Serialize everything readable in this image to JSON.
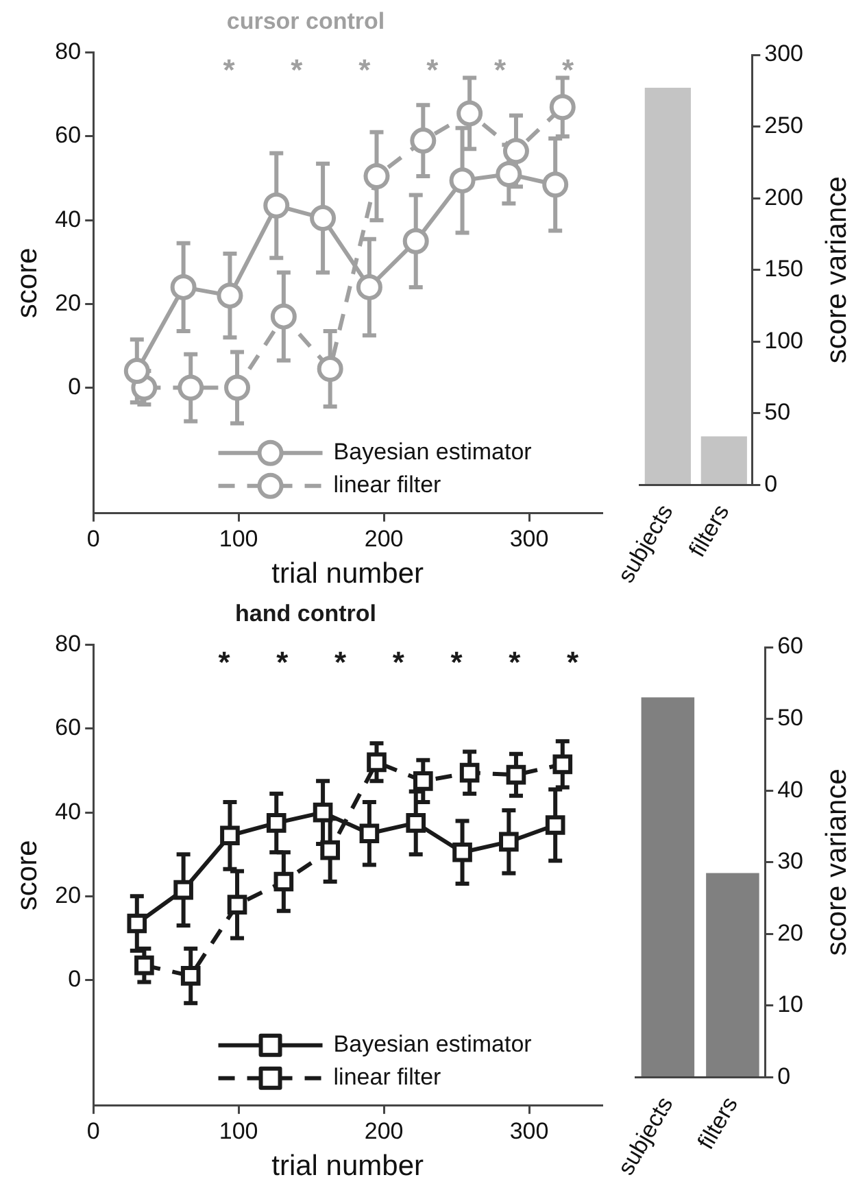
{
  "chart_data": [
    {
      "type": "line",
      "title": "cursor control",
      "xlabel": "trial number",
      "ylabel": "score",
      "xlim": [
        0,
        350
      ],
      "xticks": [
        0,
        100,
        200,
        300
      ],
      "ylim": [
        -30,
        80
      ],
      "yticks": [
        0,
        20,
        40,
        60,
        80
      ],
      "marker": "circle",
      "legend": "bottom",
      "series": [
        {
          "name": "Bayesian estimator",
          "color": "#a0a0a0",
          "line_style": "solid",
          "x": [
            30,
            62,
            94,
            126,
            158,
            190,
            222,
            254,
            286,
            318
          ],
          "values": [
            4,
            24,
            22,
            43.5,
            40.5,
            24,
            35,
            49.5,
            51,
            48.5
          ],
          "errors": [
            7.5,
            10.5,
            10,
            12.5,
            13,
            11.5,
            11,
            12.5,
            7,
            11
          ]
        },
        {
          "name": "linear filter",
          "color": "#a0a0a0",
          "line_style": "dashed",
          "x": [
            35,
            67,
            99,
            131,
            163,
            195,
            227,
            259,
            291,
            323
          ],
          "values": [
            0,
            0,
            0,
            17,
            4.5,
            50.5,
            59,
            65.5,
            56.5,
            67
          ],
          "errors": [
            4,
            8,
            8.5,
            10.5,
            9,
            10.5,
            8.5,
            8.5,
            8.5,
            7
          ]
        }
      ],
      "annotations": [
        "*",
        "*",
        "*",
        "*",
        "*",
        "*"
      ]
    },
    {
      "type": "bar",
      "ylabel": "score variance",
      "categories": [
        "subjects",
        "filters"
      ],
      "values": [
        277,
        34
      ],
      "color": "#c4c4c4",
      "ylim": [
        0,
        300
      ],
      "yticks": [
        0,
        50,
        100,
        150,
        200,
        250,
        300
      ]
    },
    {
      "type": "line",
      "title": "hand control",
      "xlabel": "trial number",
      "ylabel": "score",
      "xlim": [
        0,
        350
      ],
      "xticks": [
        0,
        100,
        200,
        300
      ],
      "ylim": [
        -30,
        80
      ],
      "yticks": [
        0,
        20,
        40,
        60,
        80
      ],
      "marker": "square",
      "legend": "bottom",
      "series": [
        {
          "name": "Bayesian estimator",
          "color": "#1a1a1a",
          "line_style": "solid",
          "x": [
            30,
            62,
            94,
            126,
            158,
            190,
            222,
            254,
            286,
            318
          ],
          "values": [
            13.5,
            21.5,
            34.5,
            37.5,
            40,
            35,
            37.5,
            30.5,
            33,
            37
          ],
          "errors": [
            6.5,
            8.5,
            8,
            7,
            7.5,
            7.5,
            7.5,
            7.5,
            7.5,
            8.5
          ]
        },
        {
          "name": "linear filter",
          "color": "#1a1a1a",
          "line_style": "dashed",
          "x": [
            35,
            67,
            99,
            131,
            163,
            195,
            227,
            259,
            291,
            323
          ],
          "values": [
            3.5,
            1,
            18,
            23.5,
            31,
            52,
            47.5,
            49.5,
            49,
            51.5
          ],
          "errors": [
            4,
            6.5,
            8,
            7,
            7.5,
            4.5,
            5,
            5,
            5,
            5.5
          ]
        }
      ],
      "annotations": [
        "*",
        "*",
        "*",
        "*",
        "*",
        "*",
        "*"
      ]
    },
    {
      "type": "bar",
      "ylabel": "score variance",
      "categories": [
        "subjects",
        "filters"
      ],
      "values": [
        53,
        28.5
      ],
      "color": "#808080",
      "ylim": [
        0,
        60
      ],
      "yticks": [
        0,
        10,
        20,
        30,
        40,
        50,
        60
      ]
    }
  ]
}
